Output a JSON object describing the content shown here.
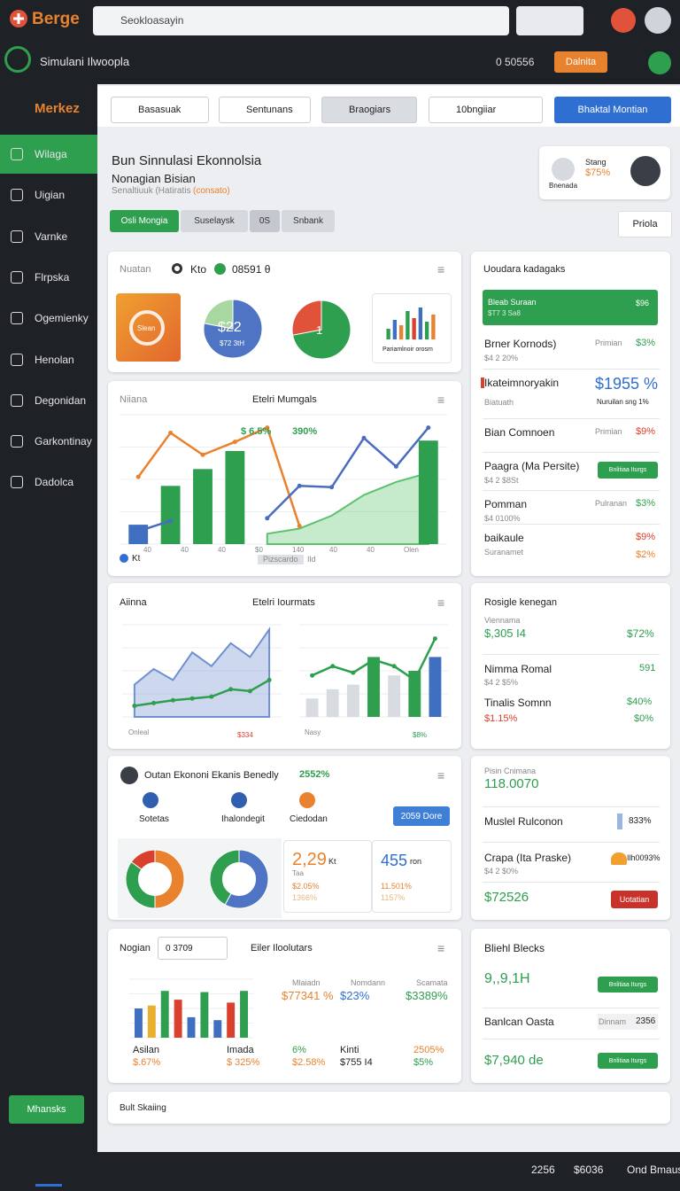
{
  "topbar": {
    "brand": "Berge",
    "search": "Seokloasayin"
  },
  "appbar": {
    "title": "Simulani Ilwoopla",
    "counter": "0 50556",
    "button": "Dalnita"
  },
  "sidebar": {
    "brand": "Merkez",
    "items": [
      "Wilaga",
      "Uigian",
      "Varnke",
      "Flrpska",
      "Ogemienky",
      "Henolan",
      "Degonidan",
      "Garkontinay",
      "Dadolca"
    ],
    "footer": "Mhansks"
  },
  "filters": {
    "dropdowns": [
      "Basasuak",
      "Sentunans",
      "Braogiars",
      "10bngiiar"
    ],
    "button": "Bhaktal Montian"
  },
  "header": {
    "title": "Bun Sinnulasi Ekonnolsia",
    "subtitle": "Nonagian Bisian",
    "note": "Senaltiuuk (Hatiratis",
    "note_tag": "(consato)",
    "tabs": [
      "Osli Mongia",
      "Suselaysk",
      "0S",
      "Snbank"
    ],
    "profile": {
      "name": "Stang",
      "value": "$75%",
      "caption": "Bnenada"
    },
    "action": "Priola"
  },
  "overview": {
    "title": "Nuatan",
    "legend": "Kto",
    "value": "08591 θ",
    "tile1": "Slean",
    "tile2_value": "$22",
    "tile2_caption": "$72 3tH",
    "tile3_value": "1",
    "tile4_caption": "Pariamlnoir orosm",
    "pie_blue": {
      "values": [
        78,
        22
      ],
      "colors": [
        "#4f74c4",
        "#a8d8a0"
      ]
    },
    "pie_green": {
      "values": [
        72,
        28
      ],
      "colors": [
        "#2e9e4f",
        "#e0533a"
      ]
    },
    "mini_chart": {
      "type": "bar",
      "ylim": [
        0,
        100
      ],
      "bars": {
        "values": [
          30,
          55,
          40,
          80,
          60,
          90,
          50,
          70
        ],
        "colors": [
          "#2e9e4f",
          "#3f6fc1",
          "#e8822e",
          "#2e9e4f",
          "#d9412e",
          "#3f6fc1",
          "#2e9e4f",
          "#e8822e"
        ]
      }
    }
  },
  "main_chart": {
    "left": "Niiana",
    "title": "Etelri Mumgals",
    "annotations": [
      "$ 6.5%",
      "390%"
    ],
    "legend": "Kt",
    "footer": [
      "Pizscardo",
      "Ild"
    ],
    "x_labels": [
      "40",
      "40",
      "40",
      "$0",
      "140",
      "40",
      "40",
      "Olen"
    ],
    "chart": {
      "type": "combo",
      "ylim": [
        0,
        100
      ],
      "yticks": [
        0,
        25,
        50,
        75,
        100
      ],
      "area": {
        "color": "#5cc26d",
        "values": [
          null,
          null,
          null,
          null,
          8,
          12,
          22,
          38,
          48,
          55
        ]
      },
      "bars": {
        "color": "#2e9e4f",
        "values": [
          15,
          45,
          58,
          72,
          null,
          null,
          null,
          null,
          null,
          80
        ],
        "colors": [
          "#3f6fc1",
          "#2e9e4f",
          "#2e9e4f",
          "#2e9e4f",
          null,
          null,
          null,
          null,
          null,
          "#2e9e4f"
        ]
      },
      "lines": [
        {
          "color": "#e8822e",
          "values": [
            52,
            86,
            69,
            79,
            90,
            14,
            null,
            null,
            null,
            null
          ]
        },
        {
          "color": "#4a6cc0",
          "values": [
            10,
            18,
            null,
            null,
            20,
            45,
            44,
            82,
            60,
            90
          ]
        }
      ]
    }
  },
  "row3": {
    "left": "Aiinna",
    "title": "Etelri Iourmats",
    "labels": [
      "Onleal",
      "$334",
      "Nasy",
      "$8%"
    ],
    "chart_left": {
      "type": "combo",
      "ylim": [
        0,
        100
      ],
      "yticks": [
        0,
        25,
        50,
        75,
        100
      ],
      "area": {
        "color": "#6f8fd0",
        "values": [
          35,
          52,
          40,
          70,
          55,
          80,
          65,
          95
        ]
      },
      "lines": [
        {
          "color": "#2e9e4f",
          "values": [
            12,
            15,
            18,
            20,
            22,
            30,
            28,
            40
          ]
        }
      ]
    },
    "chart_right": {
      "type": "combo",
      "ylim": [
        0,
        100
      ],
      "yticks": [
        0,
        25,
        50,
        75,
        100
      ],
      "bars": {
        "color": "#2e9e4f",
        "values": [
          20,
          30,
          35,
          65,
          45,
          50,
          65
        ],
        "colors": [
          "#d8dbe0",
          "#d8dbe0",
          "#d8dbe0",
          "#2e9e4f",
          "#d8dbe0",
          "#2e9e4f",
          "#3f6fc1"
        ]
      },
      "lines": [
        {
          "color": "#2e9e4f",
          "values": [
            45,
            55,
            48,
            62,
            55,
            40,
            85
          ]
        }
      ]
    }
  },
  "row4": {
    "title": "Outan Ekononi Ekanis Benedly",
    "badge": "2552%",
    "icons": [
      "Sotetas",
      "Ihalondegit",
      "Ciedodan"
    ],
    "button": "2059 Dore",
    "donut1": {
      "values": [
        50,
        35,
        15
      ],
      "colors": [
        "#e8822e",
        "#2e9e4f",
        "#d9412e"
      ]
    },
    "donut2": {
      "values": [
        58,
        42
      ],
      "colors": [
        "#4f74c4",
        "#2e9e4f"
      ]
    },
    "stat1": {
      "value": "2,29",
      "unit": "Kt",
      "label": "Taa",
      "a": "$2.05%",
      "b": "1366%"
    },
    "stat2": {
      "value": "455",
      "unit": "ron",
      "a": "11.501%",
      "b": "1157%"
    }
  },
  "row5": {
    "left": "Nogian",
    "dropdown": "0 3709",
    "title": "Eiler Iloolutars",
    "stats": [
      [
        "Mlaiadn",
        "$77341 %"
      ],
      [
        "Nomdann",
        "$23%"
      ],
      [
        "Scamata",
        "$3389%"
      ]
    ],
    "bottom": [
      [
        "Asilan",
        "$.67%"
      ],
      [
        "Imada",
        "$ 325%"
      ],
      [
        "6%",
        "$2.58%"
      ],
      [
        "Kinti",
        "$755 I4"
      ],
      [
        "2505%",
        "$5%"
      ]
    ],
    "chart": {
      "type": "bar",
      "ylim": [
        0,
        100
      ],
      "yticks": [
        0,
        25,
        50,
        75,
        100
      ],
      "bars": {
        "values": [
          50,
          55,
          80,
          65,
          35,
          78,
          30,
          60,
          80
        ],
        "colors": [
          "#3f6fc1",
          "#e8b02e",
          "#2e9e4f",
          "#d9412e",
          "#3f6fc1",
          "#2e9e4f",
          "#3f6fc1",
          "#d9412e",
          "#2e9e4f"
        ]
      }
    }
  },
  "right1": {
    "title": "Uoudara kadagaks",
    "banner": {
      "name": "Bleab Suraan",
      "sub": "$T7 3 Sa8",
      "value": "$96"
    },
    "rows": [
      {
        "name": "Brner Kornods)",
        "sub": "$4 2 20%",
        "mid": "Primian",
        "value": "$3%"
      },
      {
        "name": "Ikateimnoryakin",
        "sub": "Biatuath",
        "mid": "Nuruilan sng 1%",
        "value": "$1955 %"
      },
      {
        "name": "Bian Comnoen",
        "sub": "",
        "mid": "Primian",
        "value": "$9%"
      },
      {
        "name": "Paagra (Ma Persite)",
        "sub": "$4 2 $8St",
        "mid": "",
        "value": "Bnlitiaa Iturgs"
      },
      {
        "name": "Pomman",
        "sub": "$4 0100%",
        "mid": "Pulranan",
        "value": "$3%"
      },
      {
        "name": "baikaule",
        "sub": "Suranamet",
        "mid": "$2%",
        "value": "$9%"
      }
    ]
  },
  "right2": {
    "title": "Rosigle kenegan",
    "a_label": "Viennama",
    "a_value": "$,305 I4",
    "a_pct": "$72%",
    "b_label": "Nimma Romal",
    "b_sub": "$4 2 $5%",
    "b_value": "591",
    "c_label": "Tinalis Somnn",
    "c_sub": "$1.15%",
    "c_value": "$40%",
    "c_value2": "$0%"
  },
  "right3": {
    "label": "Pisin Cnimana",
    "value": "118.0070",
    "a_label": "Muslel Rulconon",
    "a_value": "833%",
    "b_label": "Crapa (Ita Praske)",
    "b_sub": "$4 2 $0%",
    "b_value": "Ilh0093%",
    "total": "$72526",
    "button": "Uotatian"
  },
  "right4": {
    "title": "Bliehl Blecks",
    "a_value": "9,,9,1H",
    "button": "Bnlitiaa Iturgs",
    "b_label": "Banlcan Oasta",
    "b_mid": "Dinnam",
    "b_value": "2356",
    "c_value": "$7,940 de"
  },
  "strip": {
    "dropdown": "Bult Skaiing"
  },
  "bottombar": {
    "a": "2256",
    "b": "$6036",
    "c": "Ond Bmaus"
  }
}
